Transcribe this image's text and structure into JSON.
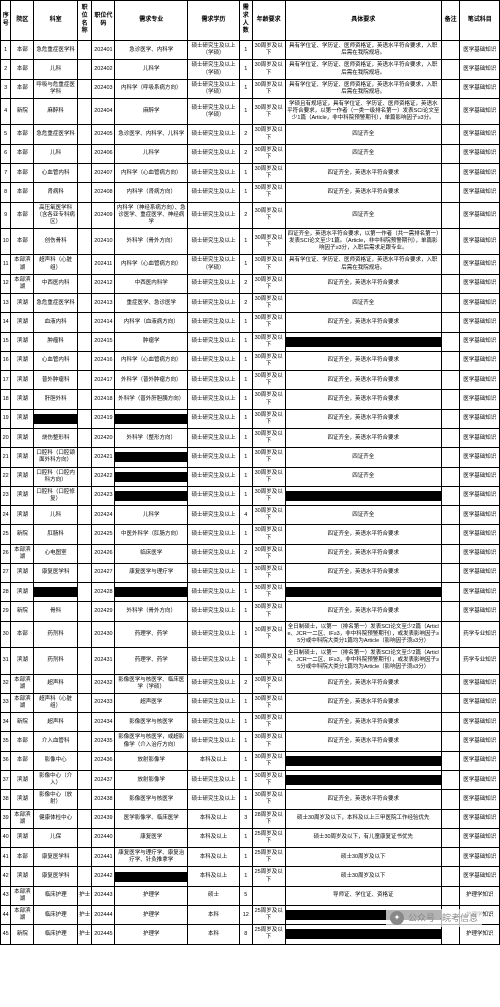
{
  "table": {
    "columns": [
      "序号",
      "院区",
      "科室",
      "职位名称",
      "职位代码",
      "需求专业",
      "需求学历",
      "需求人数",
      "年龄要求",
      "具体要求",
      "备注",
      "笔试科目"
    ],
    "col_classes": [
      "col-idx",
      "col-area",
      "col-dept",
      "col-jname",
      "col-jcode",
      "col-major",
      "col-edu",
      "col-num",
      "col-age",
      "col-req",
      "col-note",
      "col-exam"
    ],
    "rows": [
      [
        "1",
        "本部",
        "急危重症医学科",
        "",
        "202401",
        "急诊医学、内科学",
        "硕士研究生及以上（学硕）",
        "1",
        "30周岁及以下",
        "具有学位证、学历证、医师资格证，英语水平符合要求，入职后需在我院规培。",
        "",
        "医学基础知识"
      ],
      [
        "2",
        "本部",
        "儿科",
        "",
        "202402",
        "儿科学",
        "硕士研究生及以上（学硕）",
        "1",
        "30周岁及以下",
        "具有学位证、学历证、医师资格证，英语水平符合要求，入职后需在我院规培。",
        "",
        "医学基础知识"
      ],
      [
        "3",
        "本部",
        "呼吸与危重症医学科",
        "",
        "202403",
        "内科学（呼吸系病方向）",
        "硕士研究生及以上（学硕）",
        "1",
        "30周岁及以下",
        "具有学位证、学历证、医师资格证，英语水平符合要求，入职后需在我院规培。",
        "",
        "医学基础知识"
      ],
      [
        "4",
        "新院",
        "麻醉科",
        "",
        "202404",
        "麻醉学",
        "硕士研究生及以上（学硕）",
        "1",
        "30周岁及以下",
        "学硕且有规培证，具有学位证、学历证、医师资格证，英语水平符合要求，以第一作者（一类一级排名第一）发表SCI论文至少1篇（Article，非中科院预警期刊），单篇影响因子≥3分。",
        "",
        "医学基础知识"
      ],
      [
        "5",
        "本部",
        "急危重症医学科",
        "",
        "202405",
        "急诊医学、内科学、儿科学",
        "硕士研究生及以上",
        "2",
        "30周岁及以下",
        "四证齐全",
        "",
        "医学基础知识"
      ],
      [
        "6",
        "本部",
        "儿科",
        "",
        "202406",
        "儿科学",
        "硕士研究生及以上",
        "2",
        "30周岁及以下",
        "四证齐全",
        "",
        "医学基础知识"
      ],
      [
        "7",
        "本部",
        "心血管内科",
        "",
        "202407",
        "内科学（心血管病方向）",
        "硕士研究生及以上",
        "1",
        "30周岁及以下",
        "四证齐全，英语水平符合要求",
        "",
        "医学基础知识"
      ],
      [
        "8",
        "本部",
        "肾病科",
        "",
        "202408",
        "内科学（肾病方向）",
        "硕士研究生及以上",
        "1",
        "30周岁及以下",
        "四证齐全，英语水平符合要求",
        "",
        "医学基础知识"
      ],
      [
        "9",
        "本部",
        "高压氧医学科（含各亚专科病区）",
        "",
        "202409",
        "内科学（神经系病方向）、急诊医学、重症医学、神经病学",
        "硕士研究生及以上",
        "2",
        "30周岁及以下",
        "四证齐全",
        "",
        "医学基础知识"
      ],
      [
        "10",
        "本部",
        "创伤骨科",
        "",
        "202410",
        "外科学（骨外方向）",
        "硕士研究生及以上",
        "1",
        "30周岁及以下",
        "四证齐全，英语水平符合要求，以第一作者（共一需排名第一）发表SCI论文至少1篇。（Article，非中科院预警期刊），单篇影响因子≥3分，入职后需求足跟专业。",
        "",
        "医学基础知识"
      ],
      [
        "11",
        "本部滨湖",
        "超声科（心脏组）",
        "",
        "202411",
        "内科学（心血管病方向）",
        "硕士研究生及以上（学硕）",
        "1",
        "30周岁及以下",
        "具有学位证、学历证、医师资格证，英语水平符合要求，入职后需在我院规培。",
        "",
        "医学基础知识"
      ],
      [
        "12",
        "本部滨湖",
        "中西医内科",
        "",
        "202412",
        "中西医内科学",
        "硕士研究生及以上",
        "2",
        "30周岁及以下",
        "四证齐全，英语水平符合要求",
        "",
        "医学基础知识"
      ],
      [
        "13",
        "滨湖",
        "急危重症医学科",
        "",
        "202413",
        "重症医学、急诊医学",
        "硕士研究生及以上",
        "2",
        "30周岁及以下",
        "四证齐全",
        "",
        "医学基础知识"
      ],
      [
        "14",
        "滨湖",
        "血液内科",
        "",
        "202414",
        "内科学（血液病方向）",
        "硕士研究生及以上",
        "1",
        "30周岁及以下",
        "四证齐全，英语水平符合要求",
        "",
        "医学基础知识"
      ],
      [
        "15",
        "滨湖",
        "肿瘤科",
        "",
        "202415",
        "肿瘤学",
        "硕士研究生及以上",
        "1",
        "30周岁及以下",
        "[REDACT]",
        "",
        "医学基础知识"
      ],
      [
        "16",
        "滨湖",
        "心血管内科",
        "",
        "202416",
        "内科学（心血管病方向）",
        "硕士研究生及以上",
        "1",
        "30周岁及以下",
        "四证齐全，英语水平符合要求",
        "",
        "医学基础知识"
      ],
      [
        "17",
        "滨湖",
        "普外肿瘤科",
        "",
        "202417",
        "外科学（普外肿瘤方向）",
        "硕士研究生及以上",
        "1",
        "30周岁及以下",
        "四证齐全，英语水平符合要求",
        "",
        "医学基础知识"
      ],
      [
        "18",
        "滨湖",
        "肝胆外科",
        "",
        "202418",
        "外科学（普外肝胆胰方向）",
        "硕士研究生及以上",
        "1",
        "30周岁及以下",
        "四证齐全，英语水平符合要求",
        "",
        "医学基础知识"
      ],
      [
        "19",
        "滨湖",
        "[REDACT]",
        "",
        "202419",
        "[REDACT]",
        "硕士研究生及以上",
        "1",
        "30周岁及以下",
        "四证齐全，英语水平符合要求",
        "",
        "医学基础知识"
      ],
      [
        "20",
        "滨湖",
        "烧伤整形科",
        "",
        "202420",
        "外科学（整形方向）",
        "硕士研究生及以上",
        "1",
        "30周岁及以下",
        "四证齐全，英语水平符合要求",
        "",
        "医学基础知识"
      ],
      [
        "21",
        "滨湖",
        "口腔科（口腔颌面外科方向）",
        "",
        "202421",
        "[REDACT]",
        "硕士研究生及以上",
        "1",
        "30周岁及以下",
        "四证齐全",
        "",
        "医学基础知识"
      ],
      [
        "22",
        "滨湖",
        "口腔科（口腔内科方向）",
        "",
        "202422",
        "[REDACT]",
        "硕士研究生及以上",
        "1",
        "30周岁及以下",
        "四证齐全",
        "",
        "医学基础知识"
      ],
      [
        "23",
        "滨湖",
        "口腔科（口腔修复）",
        "",
        "202423",
        "[REDACT]",
        "硕士研究生及以上",
        "1",
        "30周岁及以下",
        "[REDACT]",
        "",
        "医学基础知识"
      ],
      [
        "24",
        "滨湖",
        "儿科",
        "",
        "202424",
        "儿科学",
        "硕士研究生及以上",
        "4",
        "30周岁及以下",
        "四证齐全",
        "",
        "医学基础知识"
      ],
      [
        "25",
        "新院",
        "肛肠科",
        "",
        "202425",
        "中医外科学（肛肠方向）",
        "硕士研究生及以上",
        "1",
        "30周岁及以下",
        "四证齐全，英语水平符合要求",
        "",
        "医学基础知识"
      ],
      [
        "26",
        "本部滨湖",
        "心电图室",
        "",
        "202426",
        "临床医学",
        "硕士研究生及以上",
        "2",
        "30周岁及以下",
        "四证齐全，英语水平符合要求",
        "",
        "医学基础知识"
      ],
      [
        "27",
        "滨湖",
        "康复医学科",
        "",
        "202427",
        "康复医学与理疗学",
        "硕士研究生及以上",
        "1",
        "30周岁及以下",
        "四证齐全，英语水平符合要求",
        "",
        "医学基础知识"
      ],
      [
        "28",
        "滨湖",
        "[REDACT]",
        "",
        "202428",
        "[REDACT]",
        "硕士研究生及以上",
        "1",
        "30周岁及以下",
        "[REDACT]",
        "",
        "医学基础知识"
      ],
      [
        "29",
        "新院",
        "骨科",
        "",
        "202429",
        "外科学（骨外方向）",
        "硕士研究生及以上",
        "1",
        "30周岁及以下",
        "四证齐全，英语水平符合要求",
        "",
        "医学基础知识"
      ],
      [
        "30",
        "本部",
        "药剂科",
        "",
        "202430",
        "药理学、药学",
        "硕士研究生及以上",
        "1",
        "30周岁及以下",
        "全日制硕士，以第一（排名第一）发表SCI论文至少2篇（Article、JCR一二区、IF≥3，非中科院预警期刊），或发表影响因子≥5分或中科院大类分1篇均为Article（影响因子须≥3分）",
        "",
        "药学专业知识"
      ],
      [
        "31",
        "滨湖",
        "药剂科",
        "",
        "202431",
        "药理学、药学",
        "硕士研究生及以上",
        "1",
        "30周岁及以下",
        "全日制硕士，以第一（排名第一）发表SCI论文至少2篇（Article、JCR一二区、IF≥3，非中科院预警期刊），或发表影响因子≥5分或中科院大类分1篇均为Article（影响因子须≥3分）",
        "",
        "药学专业知识"
      ],
      [
        "32",
        "本部滨湖",
        "超声科",
        "",
        "202432",
        "影像医学与核医学、临床医学（学硕）",
        "硕士研究生及以上",
        "2",
        "30周岁及以下",
        "四证齐全，英语水平符合要求",
        "",
        "医学基础知识"
      ],
      [
        "33",
        "本部滨湖",
        "超声科（心脏组）",
        "",
        "202433",
        "超声医学",
        "硕士研究生及以上",
        "1",
        "30周岁及以下",
        "四证齐全，英语水平符合要求",
        "",
        "医学基础知识"
      ],
      [
        "34",
        "新院",
        "超声科",
        "",
        "202434",
        "影像医学与核医学",
        "硕士研究生及以上",
        "1",
        "30周岁及以下",
        "四证齐全，英语水平符合要求",
        "",
        "医学基础知识"
      ],
      [
        "35",
        "本部",
        "介入血管科",
        "",
        "202435",
        "影像医学与核医学，或超影像学（介入治疗方向）",
        "硕士研究生及以上",
        "1",
        "30周岁及以下",
        "四证齐全，英语水平符合要求",
        "",
        "医学基础知识"
      ],
      [
        "36",
        "本部",
        "影像中心",
        "",
        "202436",
        "放射影像学",
        "本科及以上",
        "1",
        "30周岁及以下",
        "[REDACT]",
        "",
        "医学基础知识"
      ],
      [
        "37",
        "滨湖",
        "影像中心（介入）",
        "",
        "202437",
        "放射影像学",
        "硕士研究生及以上",
        "1",
        "30周岁及以下",
        "[REDACT]",
        "",
        "医学基础知识"
      ],
      [
        "38",
        "滨湖",
        "影像中心（放射）",
        "",
        "202438",
        "影像医学与核医学",
        "硕士研究生及以上",
        "1",
        "30周岁及以下",
        "四证齐全，英语水平符合要求",
        "",
        "医学基础知识"
      ],
      [
        "39",
        "本部滨湖",
        "健康体检中心",
        "",
        "202439",
        "医学影像学、临床医学",
        "本科及以上",
        "3",
        "28周岁及以下",
        "硕士30周岁及以下，本科及以上三甲医院工作经验优先",
        "",
        "医学基础知识"
      ],
      [
        "40",
        "滨湖",
        "儿保",
        "",
        "202440",
        "康复医学",
        "本科及以上",
        "1",
        "25周岁及以下",
        "硕士30周岁及以下，有儿童康复证书优先",
        "",
        "医学基础知识"
      ],
      [
        "41",
        "本部",
        "康复医学科",
        "",
        "202441",
        "康复医学与理疗学、康复治疗学、针灸推拿学",
        "本科及以上",
        "1",
        "25周岁及以下",
        "硕士30周岁及以下",
        "",
        "医学基础知识"
      ],
      [
        "42",
        "滨湖",
        "康复医学科",
        "",
        "202442",
        "[REDACT]",
        "本科及以上",
        "1",
        "25周岁及以下",
        "硕士30周岁及以下",
        "",
        "医学基础知识"
      ],
      [
        "43",
        "本部滨湖",
        "临床护理",
        "护士",
        "202443",
        "护理学",
        "硕士",
        "5",
        "",
        "导师证、学位证、资格证",
        "",
        "护理学知识"
      ],
      [
        "44",
        "本部滨湖",
        "临床护理",
        "护士",
        "202444",
        "护理学",
        "本科",
        "12",
        "25周岁及以下",
        "[REDACT]",
        "",
        "护理学知识"
      ],
      [
        "45",
        "新院",
        "临床护理",
        "护士",
        "202445",
        "护理学",
        "本科",
        "8",
        "25周岁及以下",
        "[REDACT]",
        "",
        "护理学知识"
      ]
    ]
  },
  "watermark": {
    "prefix": "公众号",
    "name": "·皖考信息"
  },
  "style": {
    "border_color": "#000000",
    "background": "#ffffff",
    "header_fontsize": 6,
    "cell_fontsize": 5.5,
    "redact_color": "#000000",
    "watermark_color": "#888888"
  }
}
